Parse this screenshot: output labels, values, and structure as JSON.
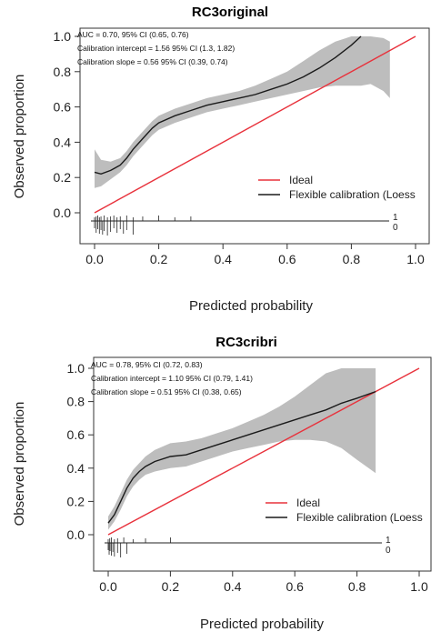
{
  "chart_data": [
    {
      "type": "line",
      "title": "RC3original",
      "xlabel": "Predicted probability",
      "ylabel": "Observed proportion",
      "xlim": [
        0,
        1
      ],
      "ylim": [
        0,
        1
      ],
      "x_ticks": [
        "0.0",
        "0.2",
        "0.4",
        "0.6",
        "0.8",
        "1.0"
      ],
      "y_ticks": [
        "0.0",
        "0.2",
        "0.4",
        "0.6",
        "0.8",
        "1.0"
      ],
      "annotations": [
        "AUC = 0.70, 95% CI (0.65, 0.76)",
        "Calibration intercept = 1.56 95% CI (1.3, 1.82)",
        "Calibration slope = 0.56 95% CI (0.39, 0.74)"
      ],
      "legend": {
        "placement": "bottom-right",
        "entries": [
          "Ideal",
          "Flexible calibration (Loess"
        ]
      },
      "colors": {
        "ideal": "#e8323c",
        "loess": "#1a1a1a",
        "band": "#bdbdbd"
      },
      "ideal": {
        "x": [
          0,
          1
        ],
        "y": [
          0,
          1
        ]
      },
      "loess": {
        "x": [
          0.0,
          0.02,
          0.05,
          0.08,
          0.1,
          0.12,
          0.15,
          0.18,
          0.2,
          0.25,
          0.3,
          0.35,
          0.4,
          0.45,
          0.5,
          0.55,
          0.6,
          0.65,
          0.7,
          0.75,
          0.8,
          0.83
        ],
        "y": [
          0.23,
          0.22,
          0.24,
          0.27,
          0.31,
          0.36,
          0.42,
          0.48,
          0.51,
          0.55,
          0.58,
          0.61,
          0.63,
          0.65,
          0.67,
          0.7,
          0.73,
          0.77,
          0.82,
          0.88,
          0.95,
          1.0
        ],
        "lower": [
          0.14,
          0.15,
          0.19,
          0.23,
          0.27,
          0.32,
          0.38,
          0.44,
          0.47,
          0.51,
          0.54,
          0.57,
          0.59,
          0.61,
          0.63,
          0.65,
          0.67,
          0.69,
          0.71,
          0.72,
          0.72,
          0.72
        ],
        "upper": [
          0.36,
          0.3,
          0.29,
          0.31,
          0.35,
          0.4,
          0.46,
          0.52,
          0.55,
          0.59,
          0.62,
          0.65,
          0.67,
          0.69,
          0.72,
          0.76,
          0.8,
          0.86,
          0.92,
          0.97,
          1.0,
          1.0
        ],
        "band_extra_x": [
          0.86,
          0.9,
          0.92
        ],
        "band_extra_upper": [
          1.0,
          0.99,
          0.97
        ],
        "band_extra_lower": [
          0.73,
          0.69,
          0.65
        ]
      },
      "rug_labels": [
        "1",
        "0"
      ]
    },
    {
      "type": "line",
      "title": "RC3cribri",
      "xlabel": "Predicted probability",
      "ylabel": "Observed proportion",
      "xlim": [
        0,
        1
      ],
      "ylim": [
        0,
        1
      ],
      "x_ticks": [
        "0.0",
        "0.2",
        "0.4",
        "0.6",
        "0.8",
        "1.0"
      ],
      "y_ticks": [
        "0.0",
        "0.2",
        "0.4",
        "0.6",
        "0.8",
        "1.0"
      ],
      "annotations": [
        "AUC = 0.78, 95% CI (0.72, 0.83)",
        "Calibration intercept = 1.10 95% CI (0.79, 1.41)",
        "Calibration slope = 0.51 95% CI (0.38, 0.65)"
      ],
      "legend": {
        "placement": "bottom-right",
        "entries": [
          "Ideal",
          "Flexible calibration (Loess"
        ]
      },
      "colors": {
        "ideal": "#e8323c",
        "loess": "#1a1a1a",
        "band": "#bdbdbd"
      },
      "ideal": {
        "x": [
          0,
          1
        ],
        "y": [
          0,
          1
        ]
      },
      "loess": {
        "x": [
          0.0,
          0.02,
          0.04,
          0.06,
          0.08,
          0.1,
          0.12,
          0.15,
          0.2,
          0.25,
          0.3,
          0.35,
          0.4,
          0.45,
          0.5,
          0.55,
          0.6,
          0.65,
          0.7,
          0.75,
          0.8,
          0.86
        ],
        "y": [
          0.07,
          0.12,
          0.2,
          0.28,
          0.34,
          0.38,
          0.41,
          0.44,
          0.47,
          0.48,
          0.51,
          0.54,
          0.57,
          0.6,
          0.63,
          0.66,
          0.69,
          0.72,
          0.75,
          0.79,
          0.82,
          0.86
        ],
        "lower": [
          0.03,
          0.08,
          0.15,
          0.23,
          0.29,
          0.33,
          0.36,
          0.38,
          0.4,
          0.41,
          0.44,
          0.47,
          0.5,
          0.52,
          0.54,
          0.56,
          0.57,
          0.57,
          0.56,
          0.52,
          0.45,
          0.37
        ],
        "upper": [
          0.11,
          0.17,
          0.25,
          0.33,
          0.39,
          0.43,
          0.47,
          0.51,
          0.55,
          0.56,
          0.58,
          0.61,
          0.64,
          0.68,
          0.72,
          0.77,
          0.83,
          0.9,
          0.97,
          1.0,
          1.0,
          1.0
        ]
      },
      "rug_labels": [
        "1",
        "0"
      ]
    }
  ]
}
